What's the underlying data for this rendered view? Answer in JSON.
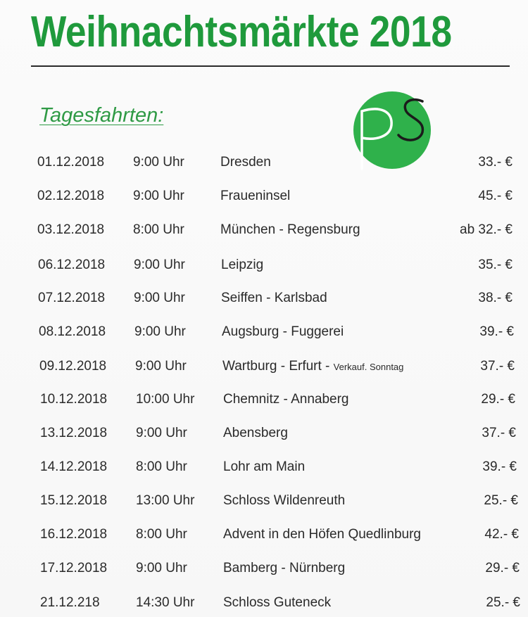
{
  "header": {
    "title": "Weihnachtsmärkte  2018",
    "subtitle": "Tagesfahrten:"
  },
  "logo": {
    "icon": "ps-logo-icon",
    "letters": "PS",
    "color": "#2fb14b"
  },
  "trips": [
    {
      "date": "01.12.2018",
      "time": "9:00 Uhr",
      "destination": "Dresden",
      "note": "",
      "price": "33.- €"
    },
    {
      "date": "02.12.2018",
      "time": "9:00 Uhr",
      "destination": "Fraueninsel",
      "note": "",
      "price": "45.- €"
    },
    {
      "date": "03.12.2018",
      "time": "8:00 Uhr",
      "destination": "München - Regensburg",
      "note": "",
      "price": "ab 32.- €"
    },
    {
      "date": "06.12.2018",
      "time": "9:00 Uhr",
      "destination": "Leipzig",
      "note": "",
      "price": "35.- €"
    },
    {
      "date": "07.12.2018",
      "time": "9:00 Uhr",
      "destination": "Seiffen - Karlsbad",
      "note": "",
      "price": "38.- €"
    },
    {
      "date": "08.12.2018",
      "time": "9:00 Uhr",
      "destination": "Augsburg - Fuggerei",
      "note": "",
      "price": "39.- €"
    },
    {
      "date": "09.12.2018",
      "time": "9:00 Uhr",
      "destination": "Wartburg - Erfurt - ",
      "note": "Verkauf. Sonntag",
      "price": "37.- €"
    },
    {
      "date": "10.12.2018",
      "time": "10:00 Uhr",
      "destination": "Chemnitz - Annaberg",
      "note": "",
      "price": "29.- €"
    },
    {
      "date": "13.12.2018",
      "time": "9:00 Uhr",
      "destination": "Abensberg",
      "note": "",
      "price": "37.- €"
    },
    {
      "date": "14.12.2018",
      "time": "8:00 Uhr",
      "destination": "Lohr am Main",
      "note": "",
      "price": "39.- €"
    },
    {
      "date": "15.12.2018",
      "time": "13:00 Uhr",
      "destination": "Schloss Wildenreuth",
      "note": "",
      "price": "25.- €"
    },
    {
      "date": "16.12.2018",
      "time": "8:00 Uhr",
      "destination": "Advent in den Höfen Quedlinburg",
      "note": "",
      "price": "42.- €"
    },
    {
      "date": "17.12.2018",
      "time": "9:00 Uhr",
      "destination": "Bamberg - Nürnberg",
      "note": "",
      "price": "29.- €"
    },
    {
      "date": "21.12.218",
      "time": "14:30 Uhr",
      "destination": "Schloss Guteneck",
      "note": "",
      "price": "25.- €"
    }
  ]
}
